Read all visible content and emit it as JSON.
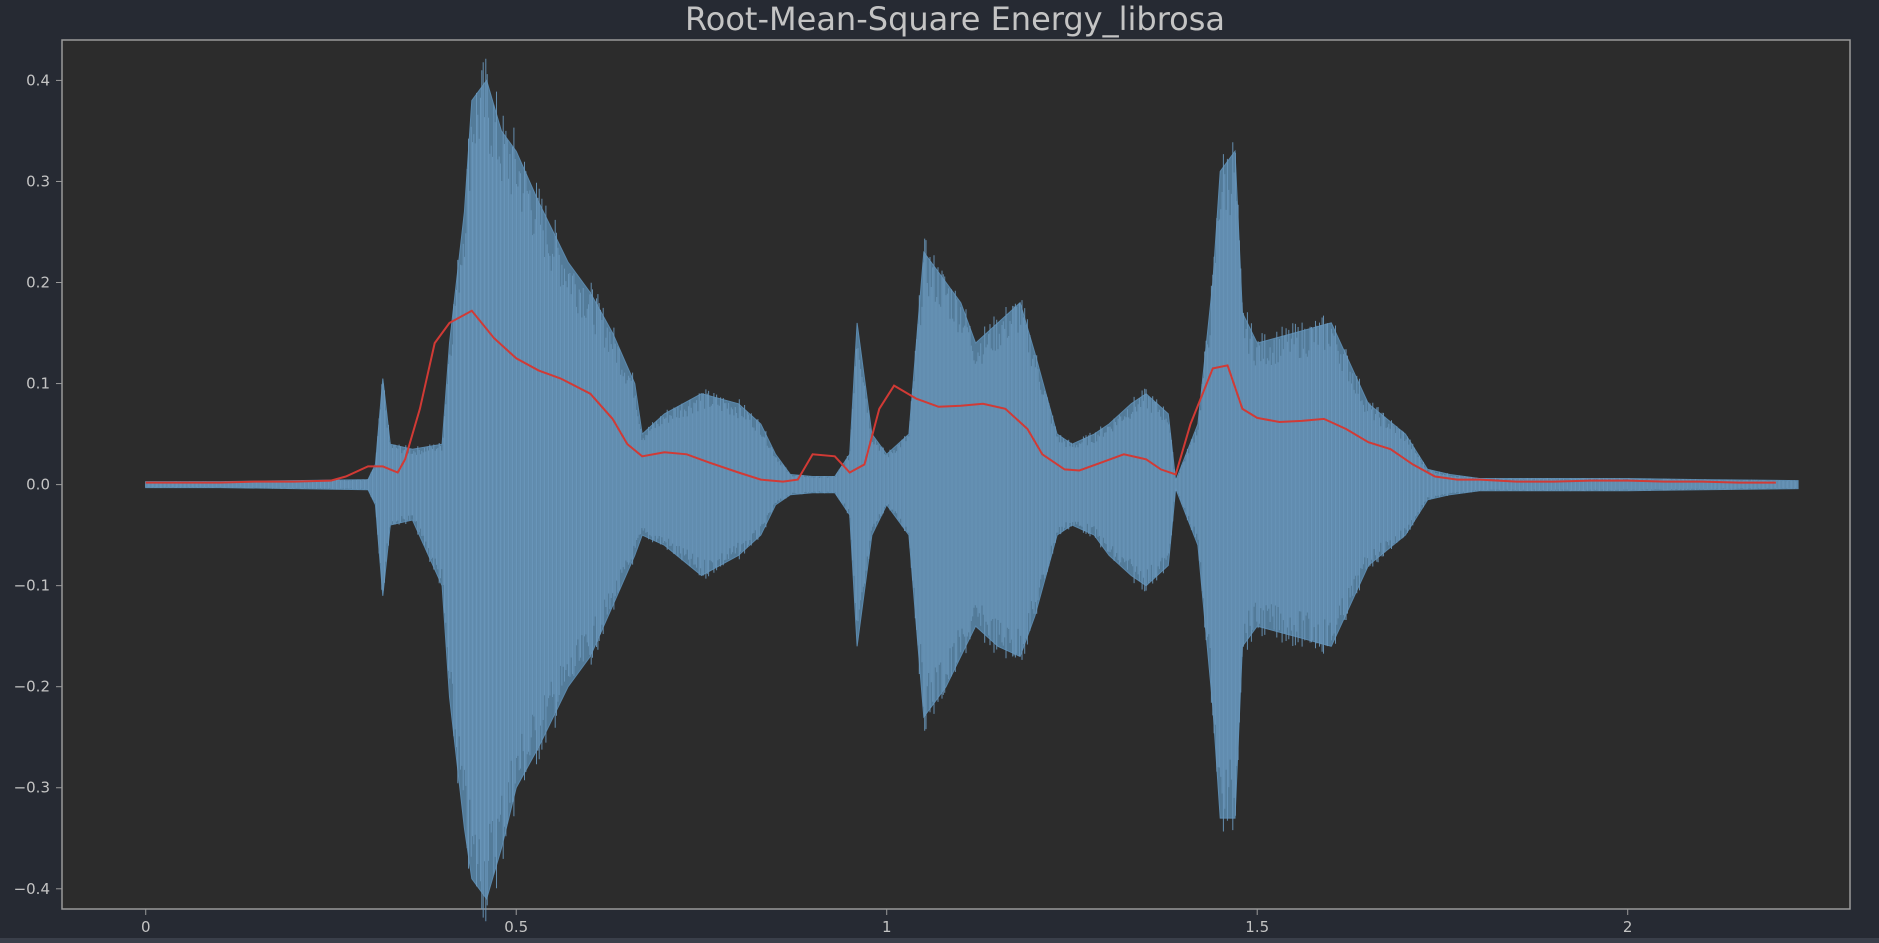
{
  "colors": {
    "page_background": "#262a33",
    "plot_background": "#2c2c2c",
    "waveform": "#5b89ad",
    "rms_line": "#d13a35",
    "text": "#c4c4c4"
  },
  "chart_data": {
    "type": "line",
    "title": "Root-Mean-Square Energy_librosa",
    "xlabel": "",
    "ylabel": "",
    "xlim": [
      -0.113,
      2.3
    ],
    "ylim": [
      -0.42,
      0.44
    ],
    "grid": false,
    "x_ticks": [
      0,
      0.5,
      1,
      1.5,
      2
    ],
    "x_tick_labels": [
      "0",
      "0.5",
      "1",
      "1.5",
      "2"
    ],
    "y_ticks": [
      0.4,
      0.3,
      0.2,
      0.1,
      0.0,
      -0.1,
      -0.2,
      -0.3,
      -0.4
    ],
    "y_tick_labels": [
      "0.4",
      "0.3",
      "0.2",
      "0.1",
      "0.0",
      "−0.1",
      "−0.2",
      "−0.3",
      "−0.4"
    ],
    "series": [
      {
        "kind": "waveform-envelope",
        "color": "#5b89ad",
        "x": [
          0.0,
          0.1,
          0.2,
          0.3,
          0.31,
          0.32,
          0.33,
          0.36,
          0.4,
          0.41,
          0.43,
          0.44,
          0.46,
          0.48,
          0.5,
          0.53,
          0.57,
          0.6,
          0.63,
          0.66,
          0.67,
          0.7,
          0.75,
          0.8,
          0.83,
          0.85,
          0.87,
          0.9,
          0.93,
          0.95,
          0.96,
          0.98,
          1.0,
          1.03,
          1.05,
          1.08,
          1.1,
          1.12,
          1.15,
          1.18,
          1.2,
          1.23,
          1.25,
          1.28,
          1.3,
          1.33,
          1.35,
          1.38,
          1.39,
          1.42,
          1.44,
          1.45,
          1.47,
          1.48,
          1.5,
          1.55,
          1.6,
          1.65,
          1.7,
          1.73,
          1.76,
          1.8,
          1.9,
          2.0,
          2.1,
          2.23
        ],
        "upper": [
          0.003,
          0.003,
          0.004,
          0.005,
          0.02,
          0.105,
          0.04,
          0.035,
          0.04,
          0.14,
          0.27,
          0.38,
          0.4,
          0.35,
          0.33,
          0.28,
          0.22,
          0.19,
          0.15,
          0.1,
          0.05,
          0.07,
          0.09,
          0.08,
          0.06,
          0.03,
          0.01,
          0.008,
          0.008,
          0.03,
          0.16,
          0.05,
          0.03,
          0.05,
          0.23,
          0.2,
          0.18,
          0.14,
          0.16,
          0.18,
          0.13,
          0.05,
          0.04,
          0.05,
          0.06,
          0.08,
          0.09,
          0.07,
          0.004,
          0.06,
          0.2,
          0.31,
          0.33,
          0.17,
          0.14,
          0.15,
          0.16,
          0.08,
          0.05,
          0.015,
          0.01,
          0.006,
          0.006,
          0.006,
          0.005,
          0.004
        ],
        "lower": [
          -0.003,
          -0.003,
          -0.004,
          -0.005,
          -0.02,
          -0.11,
          -0.04,
          -0.035,
          -0.1,
          -0.21,
          -0.34,
          -0.39,
          -0.41,
          -0.36,
          -0.3,
          -0.26,
          -0.2,
          -0.17,
          -0.12,
          -0.07,
          -0.05,
          -0.06,
          -0.09,
          -0.07,
          -0.05,
          -0.02,
          -0.01,
          -0.008,
          -0.008,
          -0.03,
          -0.16,
          -0.05,
          -0.02,
          -0.05,
          -0.23,
          -0.2,
          -0.17,
          -0.14,
          -0.16,
          -0.17,
          -0.13,
          -0.05,
          -0.04,
          -0.05,
          -0.07,
          -0.09,
          -0.1,
          -0.08,
          -0.004,
          -0.06,
          -0.22,
          -0.33,
          -0.33,
          -0.16,
          -0.14,
          -0.15,
          -0.16,
          -0.08,
          -0.05,
          -0.015,
          -0.01,
          -0.006,
          -0.006,
          -0.006,
          -0.005,
          -0.004
        ]
      },
      {
        "kind": "rms",
        "color": "#d13a35",
        "x": [
          0.0,
          0.05,
          0.1,
          0.15,
          0.2,
          0.25,
          0.27,
          0.3,
          0.32,
          0.34,
          0.35,
          0.37,
          0.39,
          0.41,
          0.44,
          0.47,
          0.5,
          0.53,
          0.56,
          0.6,
          0.63,
          0.65,
          0.67,
          0.7,
          0.73,
          0.76,
          0.8,
          0.83,
          0.86,
          0.88,
          0.9,
          0.93,
          0.95,
          0.97,
          0.99,
          1.01,
          1.04,
          1.07,
          1.1,
          1.13,
          1.16,
          1.19,
          1.21,
          1.24,
          1.26,
          1.29,
          1.32,
          1.35,
          1.37,
          1.39,
          1.41,
          1.44,
          1.46,
          1.48,
          1.5,
          1.53,
          1.56,
          1.59,
          1.62,
          1.65,
          1.68,
          1.71,
          1.74,
          1.77,
          1.8,
          1.85,
          1.9,
          1.95,
          2.0,
          2.05,
          2.1,
          2.15,
          2.2
        ],
        "y": [
          0.002,
          0.002,
          0.002,
          0.003,
          0.003,
          0.004,
          0.008,
          0.018,
          0.018,
          0.012,
          0.025,
          0.075,
          0.14,
          0.16,
          0.172,
          0.145,
          0.125,
          0.113,
          0.105,
          0.09,
          0.065,
          0.04,
          0.028,
          0.032,
          0.03,
          0.022,
          0.012,
          0.005,
          0.003,
          0.005,
          0.03,
          0.028,
          0.012,
          0.02,
          0.075,
          0.098,
          0.085,
          0.077,
          0.078,
          0.08,
          0.075,
          0.055,
          0.03,
          0.015,
          0.014,
          0.022,
          0.03,
          0.025,
          0.015,
          0.01,
          0.06,
          0.115,
          0.118,
          0.075,
          0.066,
          0.062,
          0.063,
          0.065,
          0.055,
          0.042,
          0.035,
          0.02,
          0.008,
          0.005,
          0.005,
          0.003,
          0.003,
          0.004,
          0.004,
          0.003,
          0.003,
          0.002,
          0.002
        ]
      }
    ]
  }
}
